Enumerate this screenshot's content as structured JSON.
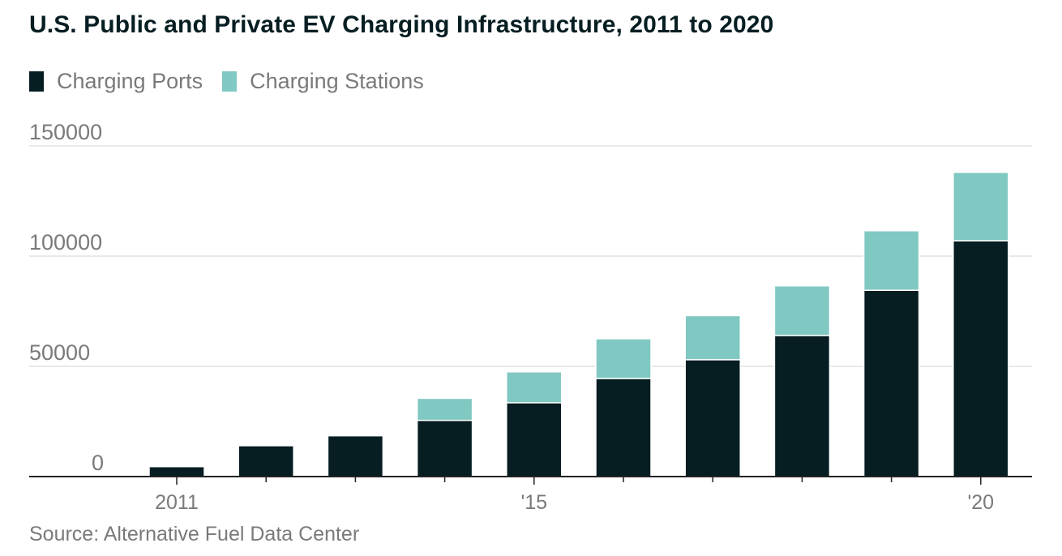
{
  "title": "U.S. Public and Private EV Charging Infrastructure, 2011 to 2020",
  "source": "Source: Alternative Fuel Data Center",
  "colors": {
    "ports": "#061e22",
    "stations": "#80c8c2",
    "text_muted": "#7a7a7a",
    "grid": "#d9d9d9",
    "axis": "#222222"
  },
  "legend": [
    {
      "label": "Charging Ports",
      "color": "#061e22"
    },
    {
      "label": "Charging Stations",
      "color": "#80c8c2"
    }
  ],
  "chart_data": {
    "type": "bar",
    "stacked": true,
    "title": "U.S. Public and Private EV Charging Infrastructure, 2011 to 2020",
    "categories": [
      "2011",
      "2012",
      "2013",
      "2014",
      "2015",
      "2016",
      "2017",
      "2018",
      "2019",
      "2020"
    ],
    "x_tick_labels": [
      "2011",
      "",
      "",
      "",
      "'15",
      "",
      "",
      "",
      "",
      "'20"
    ],
    "series": [
      {
        "name": "Charging Ports",
        "color": "#061e22",
        "values": [
          4500,
          14000,
          18500,
          25500,
          33500,
          44500,
          53000,
          64000,
          84500,
          107000
        ]
      },
      {
        "name": "Charging Stations",
        "color": "#80c8c2",
        "values": [
          0,
          0,
          0,
          10000,
          14000,
          18000,
          20000,
          22500,
          27000,
          31000
        ]
      }
    ],
    "xlabel": "",
    "ylabel": "",
    "ylim": [
      0,
      150000
    ],
    "yticks": [
      0,
      50000,
      100000,
      150000
    ],
    "ytick_labels": [
      "0",
      "50000",
      "100000",
      "150000"
    ],
    "grid": true,
    "legend_position": "top-left"
  }
}
